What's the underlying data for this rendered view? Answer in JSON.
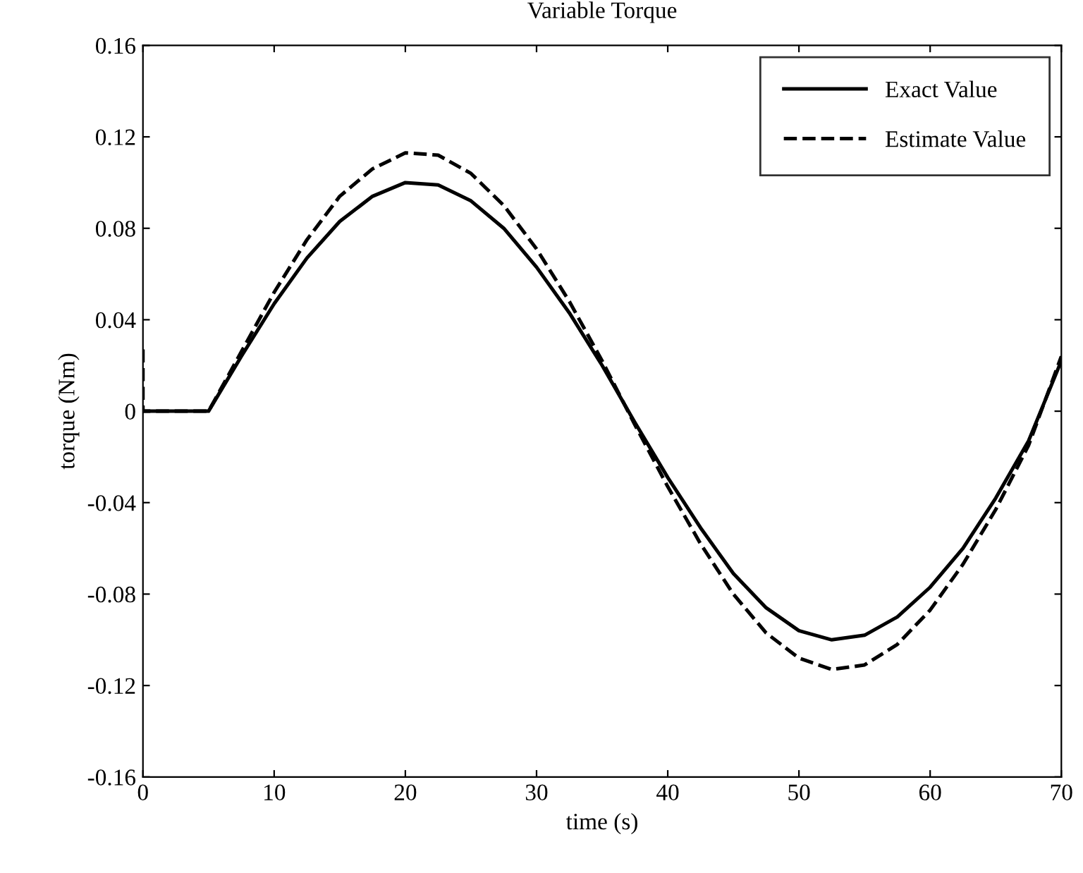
{
  "chart_data": {
    "type": "line",
    "title": "Variable Torque",
    "xlabel": "time (s)",
    "ylabel": "torque (Nm)",
    "xlim": [
      0,
      70
    ],
    "xticks": [
      0,
      10,
      20,
      30,
      40,
      50,
      60,
      70
    ],
    "ylim": [
      -0.16,
      0.16
    ],
    "yticks": [
      -0.16,
      -0.12,
      -0.08,
      -0.04,
      0,
      0.04,
      0.08,
      0.12,
      0.16
    ],
    "grid": false,
    "legend": "top right",
    "marker": "none",
    "series": [
      {
        "name": "Exact Value",
        "color": "#000000",
        "line_style": "solid",
        "x": [
          0,
          5,
          7.5,
          10,
          12.5,
          15,
          17.5,
          20,
          22.5,
          25,
          27.5,
          30,
          32.5,
          35,
          37.5,
          40,
          42.5,
          45,
          47.5,
          50,
          52.5,
          55,
          57.5,
          60,
          62.5,
          65,
          67.5,
          70
        ],
        "values": [
          0,
          0,
          0.024,
          0.047,
          0.067,
          0.083,
          0.094,
          0.1,
          0.099,
          0.092,
          0.08,
          0.063,
          0.043,
          0.02,
          -0.005,
          -0.029,
          -0.051,
          -0.071,
          -0.086,
          -0.096,
          -0.1,
          -0.098,
          -0.09,
          -0.077,
          -0.06,
          -0.038,
          -0.013,
          0.022
        ]
      },
      {
        "name": "Estimate Value",
        "color": "#000000",
        "line_style": "dashed",
        "x": [
          0,
          0,
          5,
          7.5,
          10,
          12.5,
          15,
          17.5,
          20,
          22.5,
          25,
          27.5,
          30,
          32.5,
          35,
          37.5,
          40,
          42.5,
          45,
          47.5,
          50,
          52.5,
          55,
          57.5,
          60,
          62.5,
          65,
          67.5,
          70
        ],
        "values": [
          0.027,
          0,
          0,
          0.026,
          0.052,
          0.075,
          0.094,
          0.106,
          0.113,
          0.112,
          0.104,
          0.09,
          0.071,
          0.048,
          0.022,
          -0.006,
          -0.033,
          -0.058,
          -0.08,
          -0.097,
          -0.108,
          -0.113,
          -0.111,
          -0.102,
          -0.087,
          -0.067,
          -0.043,
          -0.015,
          0.024
        ]
      }
    ]
  }
}
